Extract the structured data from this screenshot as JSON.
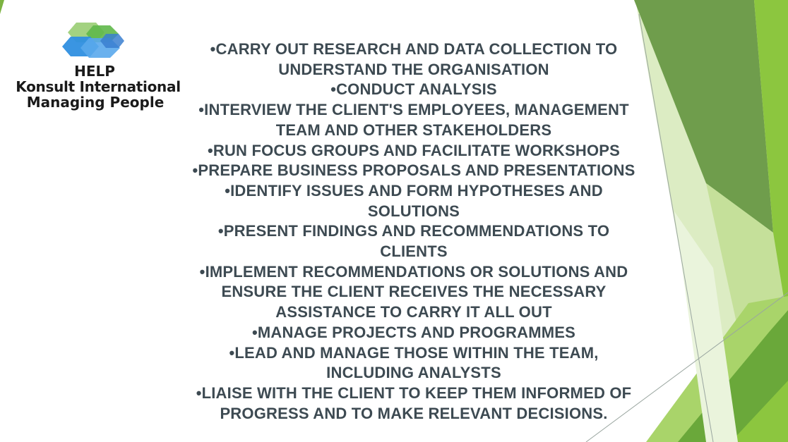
{
  "logo": {
    "line1": "HELP",
    "line2": "Konsult International",
    "line3": "Managing People"
  },
  "bullets": [
    "•CARRY OUT RESEARCH AND DATA COLLECTION TO UNDERSTAND THE ORGANISATION",
    "•CONDUCT ANALYSIS",
    "•INTERVIEW THE CLIENT'S EMPLOYEES, MANAGEMENT TEAM AND OTHER STAKEHOLDERS",
    "•RUN FOCUS GROUPS AND FACILITATE WORKSHOPS",
    "•PREPARE BUSINESS PROPOSALS AND PRESENTATIONS",
    "•IDENTIFY ISSUES AND FORM HYPOTHESES AND SOLUTIONS",
    "•PRESENT FINDINGS AND RECOMMENDATIONS TO CLIENTS",
    "•IMPLEMENT RECOMMENDATIONS OR SOLUTIONS AND ENSURE THE CLIENT RECEIVES THE NECESSARY ASSISTANCE TO CARRY IT ALL OUT",
    "•MANAGE PROJECTS AND PROGRAMMES",
    "•LEAD AND MANAGE THOSE WITHIN THE TEAM, INCLUDING ANALYSTS",
    "•LIAISE WITH THE CLIENT TO KEEP THEM INFORMED OF PROGRESS AND TO MAKE RELEVANT DECISIONS."
  ],
  "colors": {
    "text": "#3d4a52",
    "green_dark": "#5a8f3c",
    "green_mid": "#7cb342",
    "green_light": "#b8d98a",
    "green_pale": "#dcecc3",
    "logo_blue": "#2f8fe0",
    "logo_green": "#5fb84a"
  }
}
